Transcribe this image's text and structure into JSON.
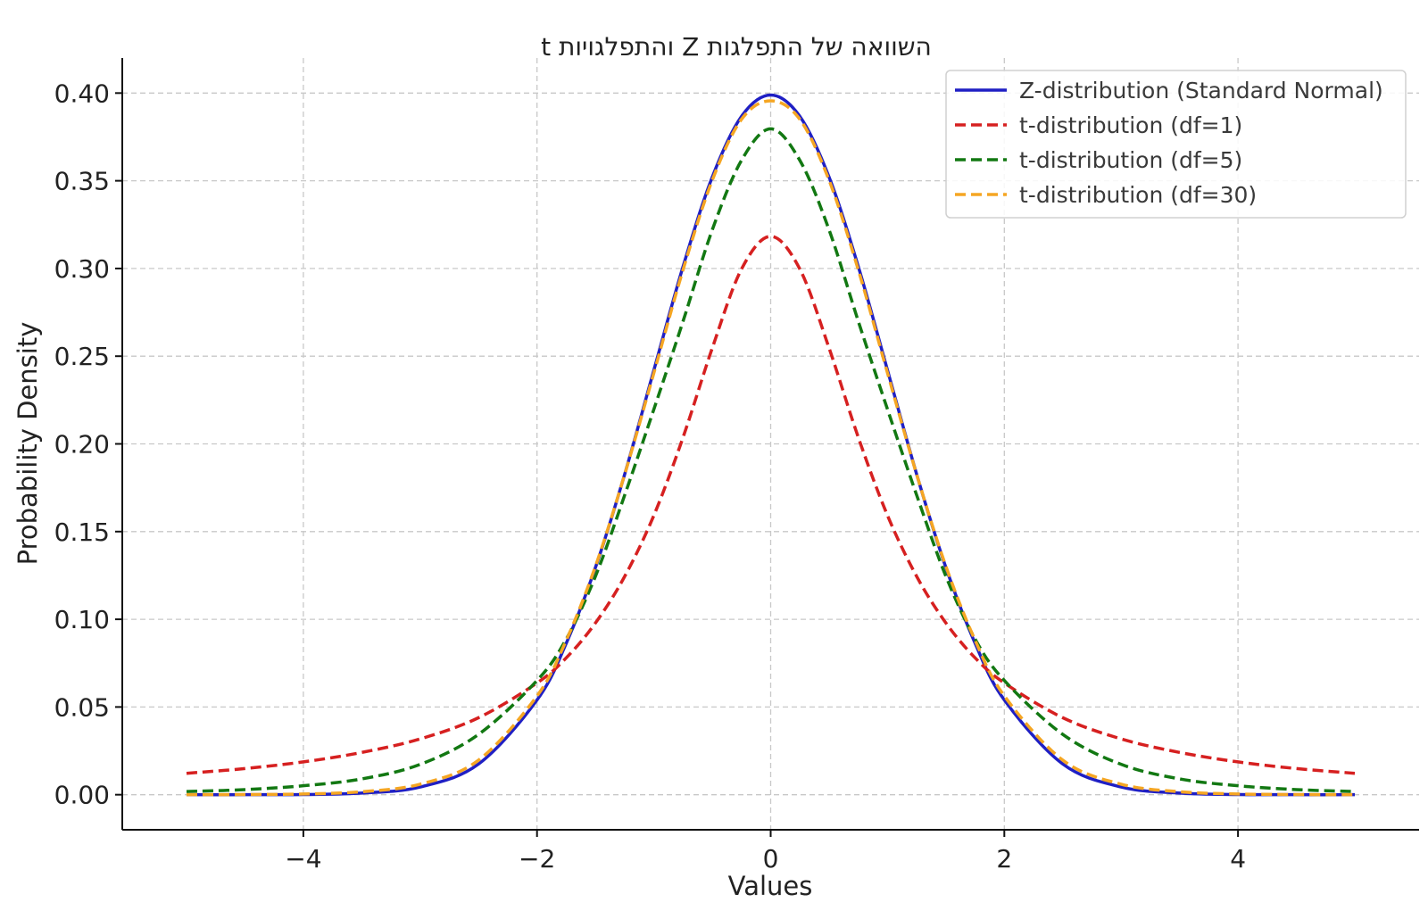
{
  "chart_data": {
    "type": "line",
    "title": "השוואה של התפלגות Z והתפלגויות t",
    "xlabel": "Values",
    "ylabel": "Probability Density",
    "xlim": [
      -5.55,
      5.55
    ],
    "ylim": [
      -0.02,
      0.42
    ],
    "x_ticks": [
      -4,
      -2,
      0,
      2,
      4
    ],
    "x_tick_labels": [
      "−4",
      "−2",
      "0",
      "2",
      "4"
    ],
    "y_ticks": [
      0,
      0.05,
      0.1,
      0.15,
      0.2,
      0.25,
      0.3,
      0.35,
      0.4
    ],
    "y_tick_labels": [
      "0.00",
      "0.05",
      "0.10",
      "0.15",
      "0.20",
      "0.25",
      "0.30",
      "0.35",
      "0.40"
    ],
    "grid": true,
    "legend_position": "top-right",
    "x": [
      -5,
      -4.5,
      -4,
      -3.5,
      -3,
      -2.5,
      -2,
      -1.75,
      -1.5,
      -1.25,
      -1,
      -0.75,
      -0.5,
      -0.25,
      0,
      0.25,
      0.5,
      0.75,
      1,
      1.25,
      1.5,
      1.75,
      2,
      2.5,
      3,
      3.5,
      4,
      4.5,
      5
    ],
    "series": [
      {
        "name": "Z-distribution (Standard Normal)",
        "color": "#1f1fc4",
        "style": "solid",
        "values": [
          0.0,
          0.0,
          0.0001,
          0.0009,
          0.0044,
          0.0175,
          0.054,
          0.0863,
          0.1295,
          0.1826,
          0.242,
          0.3011,
          0.3521,
          0.3867,
          0.3989,
          0.3867,
          0.3521,
          0.3011,
          0.242,
          0.1826,
          0.1295,
          0.0863,
          0.054,
          0.0175,
          0.0044,
          0.0009,
          0.0001,
          0.0,
          0.0
        ]
      },
      {
        "name": "t-distribution (df=1)",
        "color": "#d62020",
        "style": "dashed",
        "values": [
          0.0122,
          0.0149,
          0.0187,
          0.0241,
          0.0318,
          0.0439,
          0.0637,
          0.078,
          0.0979,
          0.1244,
          0.1592,
          0.2037,
          0.2546,
          0.2996,
          0.3183,
          0.2996,
          0.2546,
          0.2037,
          0.1592,
          0.1244,
          0.0979,
          0.078,
          0.0637,
          0.0439,
          0.0318,
          0.0241,
          0.0187,
          0.0149,
          0.0122
        ]
      },
      {
        "name": "t-distribution (df=5)",
        "color": "#127812",
        "style": "dashed",
        "values": [
          0.0018,
          0.0029,
          0.0051,
          0.009,
          0.0173,
          0.0344,
          0.0651,
          0.0887,
          0.1245,
          0.1707,
          0.2197,
          0.2699,
          0.322,
          0.3616,
          0.3796,
          0.3616,
          0.322,
          0.2699,
          0.2197,
          0.1707,
          0.1245,
          0.0887,
          0.0651,
          0.0344,
          0.0173,
          0.009,
          0.0051,
          0.0029,
          0.0018
        ]
      },
      {
        "name": "t-distribution (df=30)",
        "color": "#f5a623",
        "style": "dashed",
        "values": [
          0.0,
          0.0001,
          0.0004,
          0.0017,
          0.006,
          0.0197,
          0.0563,
          0.088,
          0.1302,
          0.1825,
          0.2404,
          0.2992,
          0.3503,
          0.385,
          0.3956,
          0.385,
          0.3503,
          0.2992,
          0.2404,
          0.1825,
          0.1302,
          0.088,
          0.0563,
          0.0197,
          0.006,
          0.0017,
          0.0004,
          0.0001,
          0.0
        ]
      }
    ]
  }
}
